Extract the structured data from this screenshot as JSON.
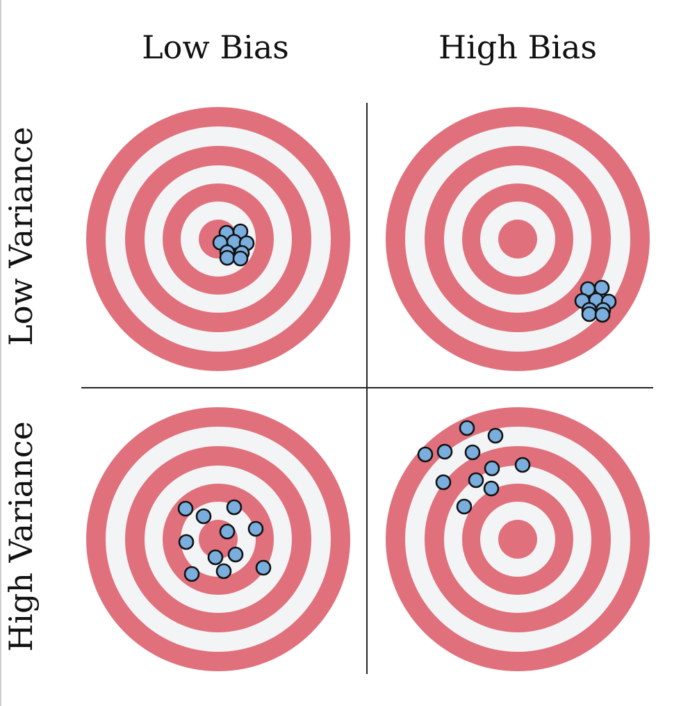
{
  "labels": {
    "col_low_bias": "Low Bias",
    "col_high_bias": "High Bias",
    "row_low_variance": "Low Variance",
    "row_high_variance": "High Variance"
  },
  "colors": {
    "ring_red": "#e0717c",
    "ring_white": "#f3f4f6",
    "dot_fill": "#7aaede",
    "dot_stroke": "#111111",
    "divider": "#222222"
  },
  "panels": [
    {
      "name": "low-bias-low-variance",
      "shots": [
        [
          326,
          335
        ],
        [
          346,
          333
        ],
        [
          317,
          349
        ],
        [
          337,
          348
        ],
        [
          355,
          350
        ],
        [
          327,
          363
        ],
        [
          348,
          364
        ],
        [
          327,
          371
        ],
        [
          346,
          372
        ]
      ]
    },
    {
      "name": "high-bias-low-variance",
      "shots": [
        [
          846,
          416
        ],
        [
          866,
          414
        ],
        [
          838,
          433
        ],
        [
          858,
          432
        ],
        [
          876,
          434
        ],
        [
          848,
          446
        ],
        [
          868,
          446
        ],
        [
          848,
          452
        ],
        [
          867,
          453
        ]
      ]
    },
    {
      "name": "low-bias-high-variance",
      "shots": [
        [
          267,
          732
        ],
        [
          293,
          743
        ],
        [
          337,
          730
        ],
        [
          327,
          765
        ],
        [
          368,
          761
        ],
        [
          268,
          780
        ],
        [
          310,
          802
        ],
        [
          339,
          798
        ],
        [
          276,
          826
        ],
        [
          322,
          822
        ],
        [
          379,
          817
        ]
      ]
    },
    {
      "name": "high-bias-high-variance",
      "shots": [
        [
          672,
          616
        ],
        [
          713,
          627
        ],
        [
          612,
          654
        ],
        [
          640,
          650
        ],
        [
          680,
          651
        ],
        [
          708,
          674
        ],
        [
          752,
          669
        ],
        [
          638,
          694
        ],
        [
          685,
          691
        ],
        [
          707,
          703
        ],
        [
          668,
          729
        ]
      ]
    }
  ]
}
